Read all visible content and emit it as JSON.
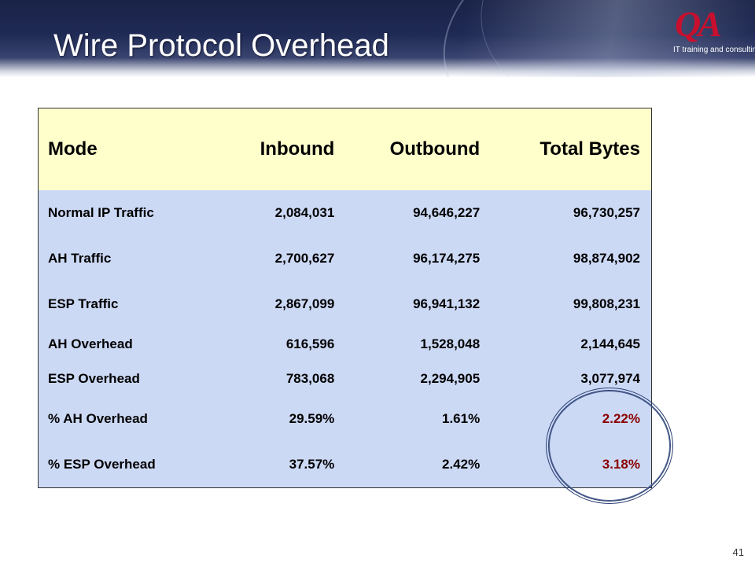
{
  "slide": {
    "title": "Wire Protocol Overhead",
    "page_number": "41"
  },
  "logo": {
    "mark": "QA",
    "tagline": "IT training and consulting"
  },
  "table": {
    "headers": [
      "Mode",
      "Inbound",
      "Outbound",
      "Total Bytes"
    ],
    "rows": [
      [
        "Normal IP Traffic",
        "2,084,031",
        "94,646,227",
        "96,730,257"
      ],
      [
        "AH Traffic",
        "2,700,627",
        "96,174,275",
        "98,874,902"
      ],
      [
        "ESP Traffic",
        "2,867,099",
        "96,941,132",
        "99,808,231"
      ],
      [
        "AH Overhead",
        "616,596",
        "1,528,048",
        "2,144,645"
      ],
      [
        "ESP Overhead",
        "783,068",
        "2,294,905",
        "3,077,974"
      ],
      [
        "% AH Overhead",
        "29.59%",
        "1.61%",
        "2.22%"
      ],
      [
        "% ESP Overhead",
        "37.57%",
        "2.42%",
        "3.18%"
      ]
    ]
  },
  "colors": {
    "header_bg": "#1f2a55",
    "table_header_bg": "#ffffcc",
    "table_body_bg": "#ccd9f5",
    "highlight_text": "#8b0000",
    "logo": "#c8102e"
  }
}
